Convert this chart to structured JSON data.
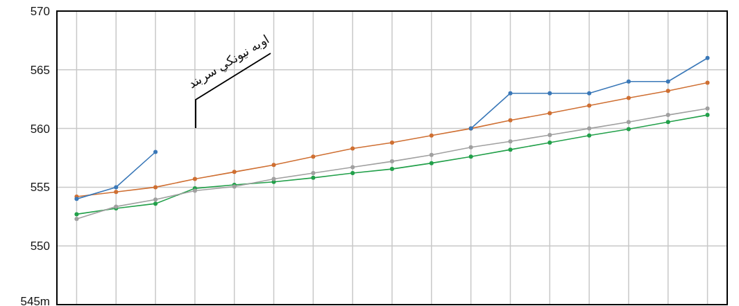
{
  "chart_data": {
    "type": "line",
    "categories": [
      null,
      null,
      null,
      null,
      null,
      null,
      null,
      null,
      null,
      null,
      null,
      null,
      null,
      null,
      null,
      null,
      null
    ],
    "series": [
      {
        "color": "#3a78b8",
        "values": [
          554,
          555,
          558,
          null,
          null,
          null,
          null,
          null,
          null,
          null,
          560,
          563,
          563,
          563,
          564,
          564,
          566
        ]
      },
      {
        "color": "#cf6f32",
        "values": [
          554.2,
          554.6,
          555.0,
          555.7,
          556.3,
          556.9,
          557.6,
          558.3,
          558.8,
          559.4,
          560.0,
          560.7,
          561.3,
          561.95,
          562.6,
          563.2,
          563.9
        ]
      },
      {
        "color": "#a0a0a0",
        "values": [
          552.3,
          553.35,
          553.95,
          554.7,
          555.05,
          555.7,
          556.2,
          556.7,
          557.2,
          557.75,
          558.4,
          558.9,
          559.45,
          560.0,
          560.55,
          561.15,
          561.7
        ]
      },
      {
        "color": "#22a04a",
        "values": [
          552.7,
          553.2,
          553.6,
          554.9,
          555.2,
          555.45,
          555.8,
          556.2,
          556.55,
          557.05,
          557.6,
          558.2,
          558.8,
          559.4,
          559.95,
          560.55,
          561.15
        ]
      }
    ],
    "ylim": [
      545,
      570
    ],
    "yticks": [
      {
        "value": 545,
        "label": "545m"
      },
      550,
      555,
      560,
      565,
      570
    ],
    "grid": true,
    "marker": "circle",
    "line_style": "solid",
    "annotations": [
      "اوبه نیونکي سربند"
    ]
  }
}
